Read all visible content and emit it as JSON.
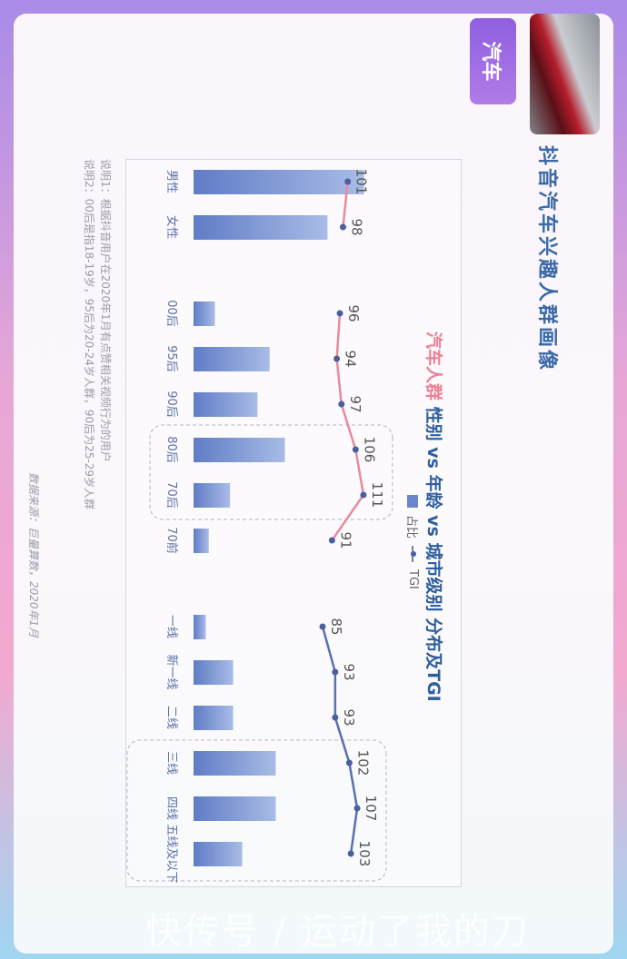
{
  "badge": "汽车",
  "page_title": "抖音汽车兴趣人群画像",
  "watermark": "快传号 / 运动了我的刀",
  "notes": [
    "说明1：根据抖音用户在2020年1月有点赞相关视频行为的用户",
    "说明2：00后是指18-19岁，95后为20-24岁人群，90后为25-29岁人群"
  ],
  "source": "数据来源：巨量算数，2020年1月",
  "colors": {
    "bar": "#6a86cc",
    "tgi_gender_age": "#e88a9c",
    "tgi_city": "#5a6fb3",
    "title": "#2f5f9e",
    "highlight": "#ee7f93"
  },
  "chart_data": {
    "type": "bar",
    "orientation": "rotated 90° clockwise",
    "title_highlight": "汽车人群",
    "title": "性别 vs 年龄 vs 城市级别 分布及TGI",
    "legend": [
      "占比",
      "TGI"
    ],
    "groups": [
      {
        "categories": [
          "男性",
          "女性"
        ],
        "share_pct_est": [
          56,
          44
        ],
        "tgi": [
          101,
          98
        ],
        "line_color": "#e88a9c"
      },
      {
        "categories": [
          "00后",
          "95后",
          "90后",
          "80后",
          "70后",
          "70前"
        ],
        "share_pct_est": [
          7,
          25,
          21,
          30,
          12,
          5
        ],
        "tgi": [
          96,
          94,
          97,
          106,
          111,
          91
        ],
        "line_color": "#e88a9c",
        "highlighted": [
          "80后",
          "70后"
        ]
      },
      {
        "categories": [
          "一线",
          "新一线",
          "二线",
          "三线",
          "四线",
          "五线及以下"
        ],
        "share_pct_est": [
          4,
          13,
          13,
          27,
          27,
          16
        ],
        "tgi": [
          85,
          93,
          93,
          102,
          107,
          103
        ],
        "line_color": "#5a6fb3",
        "highlighted": [
          "三线",
          "四线",
          "五线及以下"
        ]
      }
    ]
  }
}
